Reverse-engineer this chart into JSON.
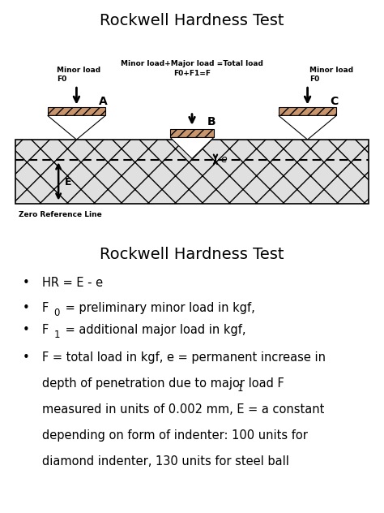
{
  "title_top": "Rockwell Hardness Test",
  "title_bottom": "Rockwell Hardness Test",
  "background_color": "#ffffff",
  "diagram_bg": "#eeeeee",
  "indenter_color": "#c8956c",
  "text_color": "#000000",
  "minor_load_text_A": "Minor load\nF0",
  "minor_load_text_C": "Minor load\nF0",
  "total_load_text": "Minor load+Major load =Total load\nF0+F1=F",
  "zero_ref_text": "Zero Reference Line",
  "label_A": "A",
  "label_B": "B",
  "label_C": "C",
  "label_E": "E",
  "label_e": "e"
}
